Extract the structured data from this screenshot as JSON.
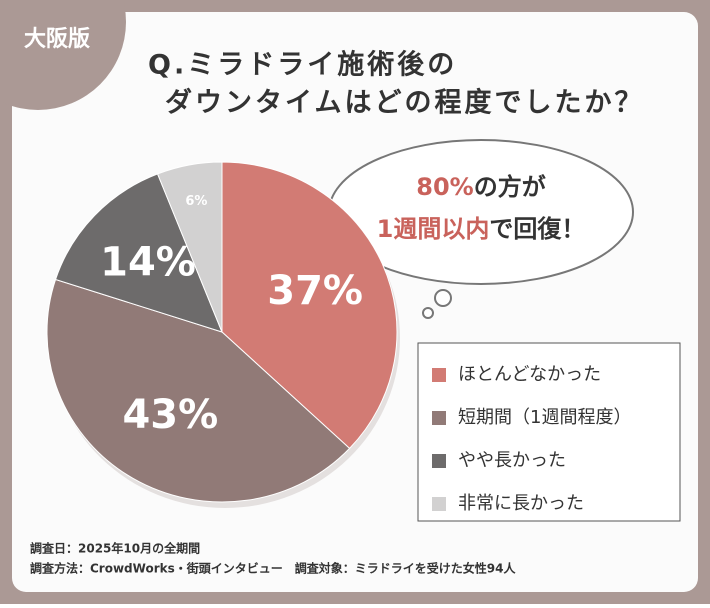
{
  "badge": "大阪版",
  "chart_data": {
    "type": "pie",
    "title": [
      "Q.ミラドライ施術後の",
      "ダウンタイムはどの程度でしたか？"
    ],
    "categories": [
      "ほとんどなかった",
      "短期間（1週間程度）",
      "やや長かった",
      "非常に長かった"
    ],
    "values": [
      37,
      43,
      14,
      6
    ],
    "value_labels": [
      "37%",
      "43%",
      "14%",
      "6%"
    ],
    "colors": [
      "#d27b74",
      "#917a77",
      "#6d6b6b",
      "#d2d1d1"
    ],
    "legend": "right",
    "annotation": [
      [
        "80%",
        "の方が"
      ],
      [
        "1週間以内",
        "で回復！"
      ]
    ],
    "notes": [
      "調査日：2025年10月の全期間",
      "調査方法：CrowdWorks・街頭インタビュー　調査対象：ミラドライを受けた女性94人"
    ]
  }
}
